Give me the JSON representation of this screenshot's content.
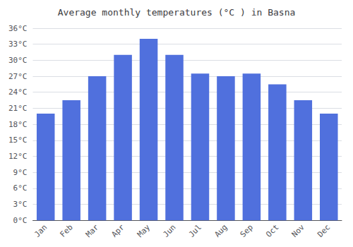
{
  "chart_data": {
    "type": "bar",
    "title": "Average monthly temperatures (°C ) in Basna",
    "categories": [
      "Jan",
      "Feb",
      "Mar",
      "Apr",
      "May",
      "Jun",
      "Jul",
      "Aug",
      "Sep",
      "Oct",
      "Nov",
      "Dec"
    ],
    "values": [
      20,
      22.5,
      27,
      31,
      34,
      31,
      27.5,
      27,
      27.5,
      25.5,
      22.5,
      20
    ],
    "ylim": [
      0,
      36
    ],
    "yticks": [
      {
        "value": 0,
        "label": "0°C"
      },
      {
        "value": 3,
        "label": "3°C"
      },
      {
        "value": 6,
        "label": "6°C"
      },
      {
        "value": 9,
        "label": "9°C"
      },
      {
        "value": 12,
        "label": "12°C"
      },
      {
        "value": 15,
        "label": "15°C"
      },
      {
        "value": 18,
        "label": "18°C"
      },
      {
        "value": 21,
        "label": "21°C"
      },
      {
        "value": 24,
        "label": "24°C"
      },
      {
        "value": 27,
        "label": "27°C"
      },
      {
        "value": 30,
        "label": "30°C"
      },
      {
        "value": 33,
        "label": "33°C"
      },
      {
        "value": 36,
        "label": "36°C"
      }
    ],
    "grid": true
  }
}
